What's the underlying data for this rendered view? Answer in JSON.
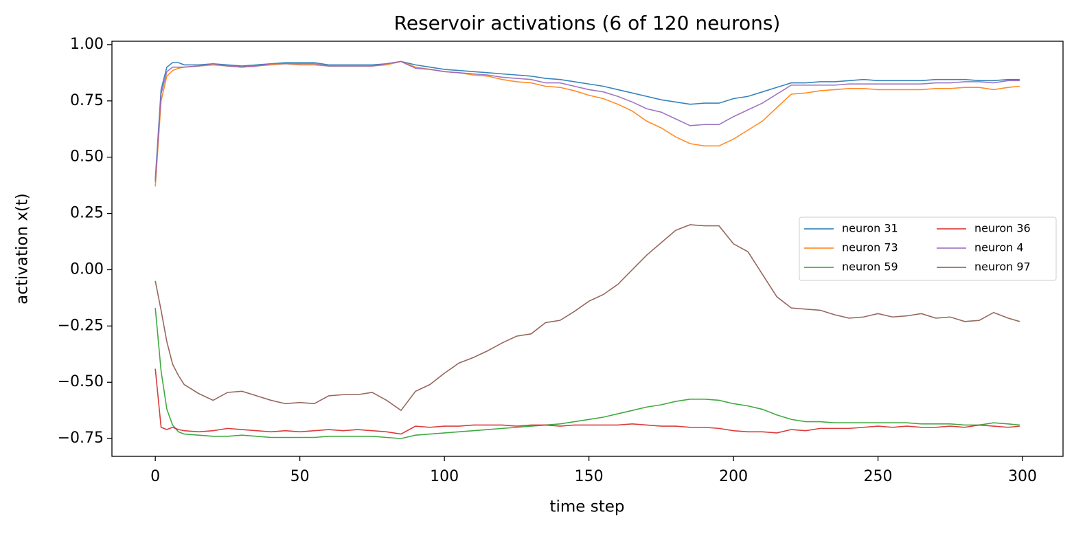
{
  "chart_data": {
    "type": "line",
    "title": "Reservoir activations (6 of 120 neurons)",
    "x_label": "time step",
    "y_label": "activation x(t)",
    "x": [
      0,
      2,
      4,
      6,
      8,
      10,
      15,
      20,
      25,
      30,
      35,
      40,
      45,
      50,
      55,
      60,
      65,
      70,
      75,
      80,
      85,
      90,
      95,
      100,
      105,
      110,
      115,
      120,
      125,
      130,
      135,
      140,
      145,
      150,
      155,
      160,
      165,
      170,
      175,
      180,
      185,
      190,
      195,
      200,
      205,
      210,
      215,
      220,
      225,
      230,
      235,
      240,
      245,
      250,
      255,
      260,
      265,
      270,
      275,
      280,
      285,
      290,
      295,
      299
    ],
    "series": [
      {
        "name": "neuron 31",
        "color": "#1f77b4",
        "values": [
          0.4,
          0.8,
          0.9,
          0.92,
          0.92,
          0.91,
          0.91,
          0.915,
          0.91,
          0.905,
          0.91,
          0.915,
          0.92,
          0.92,
          0.92,
          0.91,
          0.91,
          0.91,
          0.91,
          0.915,
          0.925,
          0.91,
          0.9,
          0.89,
          0.885,
          0.88,
          0.875,
          0.87,
          0.865,
          0.86,
          0.85,
          0.845,
          0.835,
          0.825,
          0.815,
          0.8,
          0.785,
          0.77,
          0.755,
          0.745,
          0.735,
          0.74,
          0.74,
          0.76,
          0.77,
          0.79,
          0.81,
          0.83,
          0.83,
          0.835,
          0.835,
          0.84,
          0.845,
          0.84,
          0.84,
          0.84,
          0.84,
          0.845,
          0.845,
          0.845,
          0.84,
          0.84,
          0.845,
          0.845
        ]
      },
      {
        "name": "neuron 73",
        "color": "#ff7f0e",
        "values": [
          0.37,
          0.75,
          0.86,
          0.885,
          0.895,
          0.9,
          0.905,
          0.91,
          0.905,
          0.9,
          0.905,
          0.91,
          0.915,
          0.91,
          0.91,
          0.905,
          0.905,
          0.905,
          0.905,
          0.91,
          0.925,
          0.9,
          0.89,
          0.88,
          0.875,
          0.865,
          0.86,
          0.845,
          0.835,
          0.83,
          0.815,
          0.81,
          0.795,
          0.775,
          0.76,
          0.735,
          0.705,
          0.66,
          0.63,
          0.59,
          0.56,
          0.55,
          0.55,
          0.58,
          0.62,
          0.66,
          0.72,
          0.78,
          0.785,
          0.795,
          0.8,
          0.805,
          0.805,
          0.8,
          0.8,
          0.8,
          0.8,
          0.805,
          0.805,
          0.81,
          0.81,
          0.8,
          0.81,
          0.815
        ]
      },
      {
        "name": "neuron 59",
        "color": "#2ca02c",
        "values": [
          -0.17,
          -0.45,
          -0.62,
          -0.69,
          -0.72,
          -0.73,
          -0.735,
          -0.74,
          -0.74,
          -0.735,
          -0.74,
          -0.745,
          -0.745,
          -0.745,
          -0.745,
          -0.74,
          -0.74,
          -0.74,
          -0.74,
          -0.745,
          -0.75,
          -0.735,
          -0.73,
          -0.725,
          -0.72,
          -0.715,
          -0.71,
          -0.705,
          -0.7,
          -0.695,
          -0.69,
          -0.685,
          -0.675,
          -0.665,
          -0.655,
          -0.64,
          -0.625,
          -0.61,
          -0.6,
          -0.585,
          -0.575,
          -0.575,
          -0.58,
          -0.595,
          -0.605,
          -0.62,
          -0.645,
          -0.665,
          -0.675,
          -0.675,
          -0.68,
          -0.68,
          -0.68,
          -0.68,
          -0.68,
          -0.68,
          -0.685,
          -0.685,
          -0.685,
          -0.69,
          -0.69,
          -0.68,
          -0.685,
          -0.69
        ]
      },
      {
        "name": "neuron 36",
        "color": "#d62728",
        "values": [
          -0.44,
          -0.7,
          -0.71,
          -0.7,
          -0.71,
          -0.715,
          -0.72,
          -0.715,
          -0.705,
          -0.71,
          -0.715,
          -0.72,
          -0.715,
          -0.72,
          -0.715,
          -0.71,
          -0.715,
          -0.71,
          -0.715,
          -0.72,
          -0.73,
          -0.695,
          -0.7,
          -0.695,
          -0.695,
          -0.69,
          -0.69,
          -0.69,
          -0.695,
          -0.69,
          -0.69,
          -0.695,
          -0.69,
          -0.69,
          -0.69,
          -0.69,
          -0.685,
          -0.69,
          -0.695,
          -0.695,
          -0.7,
          -0.7,
          -0.705,
          -0.715,
          -0.72,
          -0.72,
          -0.725,
          -0.71,
          -0.715,
          -0.705,
          -0.705,
          -0.705,
          -0.7,
          -0.695,
          -0.7,
          -0.695,
          -0.7,
          -0.7,
          -0.695,
          -0.7,
          -0.69,
          -0.695,
          -0.7,
          -0.695
        ]
      },
      {
        "name": "neuron 4",
        "color": "#9467bd",
        "values": [
          0.39,
          0.78,
          0.88,
          0.9,
          0.9,
          0.9,
          0.905,
          0.915,
          0.905,
          0.9,
          0.905,
          0.915,
          0.915,
          0.915,
          0.915,
          0.905,
          0.905,
          0.905,
          0.905,
          0.915,
          0.925,
          0.895,
          0.89,
          0.88,
          0.875,
          0.87,
          0.865,
          0.855,
          0.85,
          0.845,
          0.83,
          0.83,
          0.815,
          0.8,
          0.79,
          0.77,
          0.745,
          0.715,
          0.7,
          0.67,
          0.64,
          0.645,
          0.645,
          0.68,
          0.71,
          0.74,
          0.78,
          0.82,
          0.82,
          0.82,
          0.82,
          0.825,
          0.825,
          0.825,
          0.825,
          0.825,
          0.825,
          0.83,
          0.83,
          0.835,
          0.835,
          0.83,
          0.84,
          0.84
        ]
      },
      {
        "name": "neuron 97",
        "color": "#8c564b",
        "values": [
          -0.05,
          -0.18,
          -0.32,
          -0.42,
          -0.47,
          -0.51,
          -0.55,
          -0.58,
          -0.545,
          -0.54,
          -0.56,
          -0.58,
          -0.595,
          -0.59,
          -0.595,
          -0.56,
          -0.555,
          -0.555,
          -0.545,
          -0.58,
          -0.625,
          -0.54,
          -0.51,
          -0.46,
          -0.415,
          -0.39,
          -0.36,
          -0.325,
          -0.295,
          -0.285,
          -0.235,
          -0.225,
          -0.185,
          -0.14,
          -0.11,
          -0.065,
          0.0,
          0.065,
          0.12,
          0.175,
          0.2,
          0.195,
          0.195,
          0.115,
          0.08,
          -0.02,
          -0.12,
          -0.17,
          -0.175,
          -0.18,
          -0.2,
          -0.215,
          -0.21,
          -0.195,
          -0.21,
          -0.205,
          -0.195,
          -0.215,
          -0.21,
          -0.23,
          -0.225,
          -0.19,
          -0.215,
          -0.23
        ]
      }
    ],
    "xlim": [
      -15,
      314
    ],
    "ylim": [
      -0.829,
      1.015
    ],
    "xticks": [
      0,
      50,
      100,
      150,
      200,
      250,
      300
    ],
    "yticks": [
      {
        "value": -0.75,
        "label": "−0.75"
      },
      {
        "value": -0.5,
        "label": "−0.50"
      },
      {
        "value": -0.25,
        "label": "−0.25"
      },
      {
        "value": 0,
        "label": "0.00"
      },
      {
        "value": 0.25,
        "label": "0.25"
      },
      {
        "value": 0.5,
        "label": "0.50"
      },
      {
        "value": 0.75,
        "label": "0.75"
      },
      {
        "value": 1,
        "label": "1.00"
      }
    ],
    "legend": "center right",
    "legend_columns": 2
  }
}
